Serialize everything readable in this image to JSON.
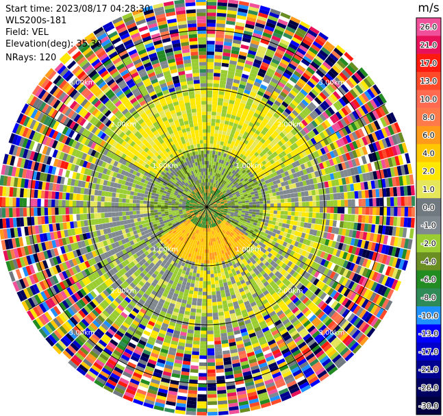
{
  "header": {
    "start_time": "Start time: 2023/08/17 04:28:30",
    "instrument": "WLS200s-181",
    "field": "Field: VEL",
    "elevation": "Elevation(deg): 35.30",
    "nrays": "NRays: 120"
  },
  "colorbar": {
    "unit": "m/s",
    "levels": [
      {
        "label": "26.0",
        "color": "#f0509a"
      },
      {
        "label": "21.0",
        "color": "#e8125a"
      },
      {
        "label": "17.0",
        "color": "#ff1a10"
      },
      {
        "label": "13.0",
        "color": "#ff4a2a"
      },
      {
        "label": "10.0",
        "color": "#ff6a50"
      },
      {
        "label": "8.0",
        "color": "#ff7a4a"
      },
      {
        "label": "6.0",
        "color": "#ff9a1a"
      },
      {
        "label": "4.0",
        "color": "#ffc800"
      },
      {
        "label": "2.0",
        "color": "#ffe800"
      },
      {
        "label": "1.0",
        "color": "#e6e65a"
      },
      {
        "label": "0.0",
        "color": "#707880"
      },
      {
        "label": "-1.0",
        "color": "#808890"
      },
      {
        "label": "-2.0",
        "color": "#9acd32"
      },
      {
        "label": "-4.0",
        "color": "#6b8e23"
      },
      {
        "label": "-6.0",
        "color": "#228b22"
      },
      {
        "label": "-8.0",
        "color": "#2e8b57"
      },
      {
        "label": "-10.0",
        "color": "#1e90ff"
      },
      {
        "label": "-13.0",
        "color": "#0000ff"
      },
      {
        "label": "-17.0",
        "color": "#0000cd"
      },
      {
        "label": "-21.0",
        "color": "#000090"
      },
      {
        "label": "-26.0",
        "color": "#000060"
      },
      {
        "label": "-30.0",
        "color": "#000040"
      }
    ]
  },
  "chart_data": {
    "type": "heatmap",
    "projection": "polar-ppi",
    "field": "VEL",
    "units": "m/s",
    "nrays": 120,
    "range_rings_km": [
      1.0,
      2.0,
      3.0
    ],
    "ring_labels": [
      "1.00km",
      "2.00km",
      "3.00km"
    ],
    "max_range_km": 3.5,
    "vmin": -30.0,
    "vmax": 26.0,
    "pattern": "near-zero gray / yellow / green inner region within ~2 km, noisy multicolor beyond"
  }
}
